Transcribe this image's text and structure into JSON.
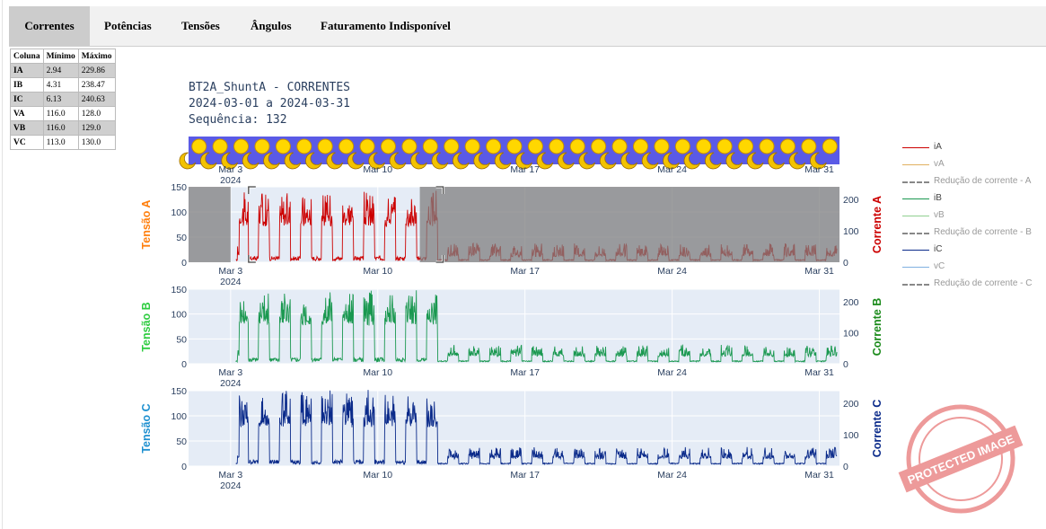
{
  "tabs": [
    {
      "label": "Correntes",
      "active": true
    },
    {
      "label": "Potências",
      "active": false
    },
    {
      "label": "Tensões",
      "active": false
    },
    {
      "label": "Ângulos",
      "active": false
    },
    {
      "label": "Faturamento Indisponível",
      "active": false
    }
  ],
  "stats_table": {
    "headers": [
      "Coluna",
      "Mínimo",
      "Máximo"
    ],
    "rows": [
      {
        "col": "IA",
        "min": "2.94",
        "max": "229.86"
      },
      {
        "col": "IB",
        "min": "4.31",
        "max": "238.47"
      },
      {
        "col": "IC",
        "min": "6.13",
        "max": "240.63"
      },
      {
        "col": "VA",
        "min": "116.0",
        "max": "128.0"
      },
      {
        "col": "VB",
        "min": "116.0",
        "max": "129.0"
      },
      {
        "col": "VC",
        "min": "113.0",
        "max": "130.0"
      }
    ]
  },
  "header": {
    "line1": "BT2A_ShuntA - CORRENTES",
    "line2": "2024-03-01 a 2024-03-31",
    "line3": "Sequência: 132"
  },
  "x_ticks": [
    "Mar 3",
    "Mar 10",
    "Mar 17",
    "Mar 24",
    "Mar 31"
  ],
  "x_year": "2024",
  "day_night_strip": {
    "days": 31
  },
  "legend": [
    {
      "label": "iA",
      "color": "#cc0000",
      "dash": false
    },
    {
      "label": "vA",
      "color": "#e0b060",
      "dash": false
    },
    {
      "label": "Redução de corrente - A",
      "color": "#888888",
      "dash": true
    },
    {
      "label": "iB",
      "color": "#1a9850",
      "dash": false
    },
    {
      "label": "vB",
      "color": "#90d090",
      "dash": false
    },
    {
      "label": "Redução de corrente - B",
      "color": "#888888",
      "dash": true
    },
    {
      "label": "iC",
      "color": "#0a2a8a",
      "dash": false
    },
    {
      "label": "vC",
      "color": "#80b0e0",
      "dash": false
    },
    {
      "label": "Redução de corrente - C",
      "color": "#888888",
      "dash": true
    }
  ],
  "colors": {
    "phaseA": "#cc0000",
    "phaseA_label": "#cc0000",
    "tensaoA_label": "#ff7f0e",
    "phaseB": "#1a9850",
    "phaseB_label": "#1a8a1a",
    "tensaoB_label": "#2ecc40",
    "phaseC": "#0a2a8a",
    "phaseC_label": "#0a2a8a",
    "tensaoC_label": "#1e90d0",
    "plot_bg": "#e5ecf6",
    "shaded": "#7f7f7f"
  },
  "stamp_text": "PROTECTED IMAGE",
  "chart_data": [
    {
      "type": "line",
      "title": "",
      "xlabel": "",
      "ylabel_left": "Tensão A",
      "ylabel_right": "Corrente A",
      "y_left_range": [
        0,
        150
      ],
      "y_left_ticks": [
        0,
        50,
        100,
        150
      ],
      "y_right_range": [
        0,
        240
      ],
      "y_right_ticks": [
        0,
        100,
        200
      ],
      "x_range": [
        "2024-03-01",
        "2024-03-31"
      ],
      "series": [
        {
          "name": "iA",
          "axis": "right",
          "color": "#cc0000"
        }
      ],
      "selected_range": [
        "2024-03-03",
        "2024-03-12"
      ],
      "shaded_ranges": [
        [
          "2024-03-01",
          "2024-03-03"
        ],
        [
          "2024-03-12",
          "2024-03-31"
        ]
      ],
      "profile": {
        "high_days": [
          "2024-03-03",
          "2024-03-12"
        ],
        "high_peak": 225,
        "high_base": 120,
        "low_peak": 60,
        "low_base": 20,
        "night": 5
      }
    },
    {
      "type": "line",
      "title": "",
      "xlabel": "",
      "ylabel_left": "Tensão B",
      "ylabel_right": "Corrente B",
      "y_left_range": [
        0,
        150
      ],
      "y_left_ticks": [
        0,
        50,
        100,
        150
      ],
      "y_right_range": [
        0,
        240
      ],
      "y_right_ticks": [
        0,
        100,
        200
      ],
      "x_range": [
        "2024-03-01",
        "2024-03-31"
      ],
      "series": [
        {
          "name": "iB",
          "axis": "right",
          "color": "#1a9850"
        }
      ],
      "profile": {
        "high_days": [
          "2024-03-03",
          "2024-03-12"
        ],
        "high_peak": 235,
        "high_base": 130,
        "low_peak": 60,
        "low_base": 25,
        "night": 6
      }
    },
    {
      "type": "line",
      "title": "",
      "xlabel": "",
      "ylabel_left": "Tensão C",
      "ylabel_right": "Corrente C",
      "y_left_range": [
        0,
        150
      ],
      "y_left_ticks": [
        0,
        50,
        100,
        150
      ],
      "y_right_range": [
        0,
        240
      ],
      "y_right_ticks": [
        0,
        100,
        200
      ],
      "x_range": [
        "2024-03-01",
        "2024-03-31"
      ],
      "series": [
        {
          "name": "iC",
          "axis": "right",
          "color": "#0a2a8a"
        }
      ],
      "profile": {
        "high_days": [
          "2024-03-03",
          "2024-03-12"
        ],
        "high_peak": 238,
        "high_base": 130,
        "low_peak": 60,
        "low_base": 25,
        "night": 6
      }
    }
  ]
}
